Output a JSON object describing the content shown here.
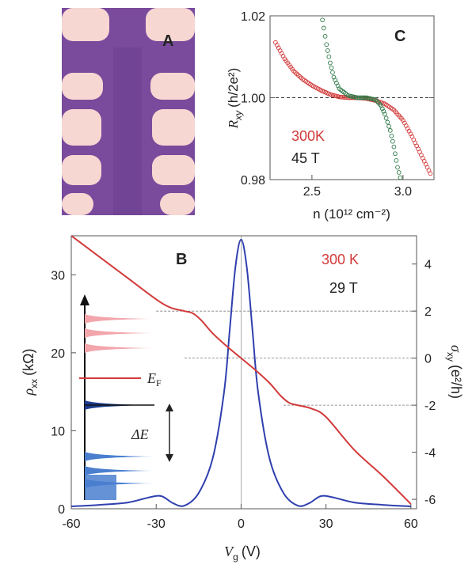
{
  "colors": {
    "red": "#d23a3a",
    "blue": "#2f3fae",
    "green": "#2e7a48",
    "pink": "#f2a6ac",
    "dark_blue": "#1e3d8f",
    "light_blue": "#4a7fd0",
    "purple": "#7a4a9c",
    "pad": "#f6d7d2"
  },
  "panel_a": {
    "label": "A"
  },
  "panel_c": {
    "label": "C",
    "ylabel_main": "R",
    "ylabel_sub": "xy",
    "ylabel_units": "(h/2e²)",
    "xlabel": "n (10¹² cm⁻²)",
    "temp_label": "300K",
    "field_label": "45 T"
  },
  "panel_b": {
    "label": "B",
    "ylabel_left_main": "ρ",
    "ylabel_left_sub": "xx",
    "ylabel_left_units": "(kΩ)",
    "ylabel_right_main": "σ",
    "ylabel_right_sub": "xy",
    "ylabel_right_units": "(e²/h)",
    "xlabel_main": "V",
    "xlabel_sub": "g",
    "xlabel_units": "(V)",
    "temp_label": "300 K",
    "field_label": "29 T",
    "inset_ef_label": "E",
    "inset_ef_sub": "F",
    "inset_gap_label": "ΔE"
  },
  "chart_data": [
    {
      "type": "scatter",
      "panel": "C",
      "x_ticks": [
        "2.5",
        "3.0"
      ],
      "y_ticks": [
        "0.98",
        "1.00",
        "1.02"
      ],
      "xlim": [
        2.27,
        3.17
      ],
      "ylim": [
        0.98,
        1.02
      ],
      "reference_line": 1.0,
      "series": [
        {
          "name": "300K",
          "x": [
            2.3,
            2.35,
            2.4,
            2.45,
            2.5,
            2.55,
            2.6,
            2.65,
            2.7,
            2.75,
            2.8,
            2.85,
            2.9,
            2.95,
            3.0,
            3.05,
            3.1,
            3.15
          ],
          "y": [
            1.0135,
            1.0095,
            1.0065,
            1.0045,
            1.003,
            1.0018,
            1.0008,
            1.0002,
            1.0,
            1.0,
            0.9998,
            0.9993,
            0.9985,
            0.997,
            0.9945,
            0.9905,
            0.986,
            0.9815
          ]
        },
        {
          "name": "45 T",
          "x": [
            2.55,
            2.58,
            2.6,
            2.62,
            2.65,
            2.7,
            2.75,
            2.8,
            2.85,
            2.88,
            2.9,
            2.93,
            2.95,
            2.97,
            3.0
          ],
          "y": [
            1.021,
            1.013,
            1.0085,
            1.005,
            1.0022,
            1.0005,
            1.0,
            1.0,
            0.9995,
            0.998,
            0.996,
            0.992,
            0.988,
            0.983,
            0.978
          ]
        }
      ]
    },
    {
      "type": "line",
      "panel": "B",
      "x_ticks": [
        "-60",
        "-30",
        "0",
        "30",
        "60"
      ],
      "y_left_ticks": [
        "0",
        "10",
        "20",
        "30"
      ],
      "y_right_ticks": [
        "-6",
        "-4",
        "-2",
        "0",
        "2",
        "4"
      ],
      "xlim": [
        -60,
        62
      ],
      "ylim_left": [
        0,
        35
      ],
      "ylim_right": [
        -6.4,
        5.2
      ],
      "reference_levels_right": [
        2,
        0,
        -2
      ],
      "series": [
        {
          "name": "ρxx",
          "axis": "left",
          "x": [
            -60,
            -50,
            -40,
            -32,
            -28,
            -24,
            -20,
            -15,
            -10,
            -6,
            -4,
            -2,
            0,
            2,
            4,
            6,
            10,
            15,
            20,
            24,
            28,
            32,
            40,
            50,
            60
          ],
          "y": [
            0.3,
            0.5,
            0.8,
            1.5,
            1.6,
            0.7,
            0.4,
            2.0,
            6.5,
            15,
            23,
            31,
            34.5,
            31,
            23,
            15,
            6.5,
            2.0,
            0.4,
            0.7,
            1.6,
            1.5,
            0.8,
            0.5,
            0.3
          ]
        },
        {
          "name": "300 K",
          "axis": "right",
          "x": [
            -60,
            -50,
            -40,
            -30,
            -25,
            -20,
            -17,
            -14,
            -10,
            -5,
            0,
            5,
            10,
            14,
            17,
            20,
            25,
            30,
            40,
            50,
            60
          ],
          "y": [
            5.2,
            4.3,
            3.4,
            2.5,
            2.15,
            2.0,
            1.9,
            1.6,
            1.05,
            0.5,
            0.0,
            -0.5,
            -1.05,
            -1.6,
            -1.9,
            -2.0,
            -2.15,
            -2.5,
            -3.9,
            -5.0,
            -6.2
          ]
        }
      ]
    }
  ]
}
